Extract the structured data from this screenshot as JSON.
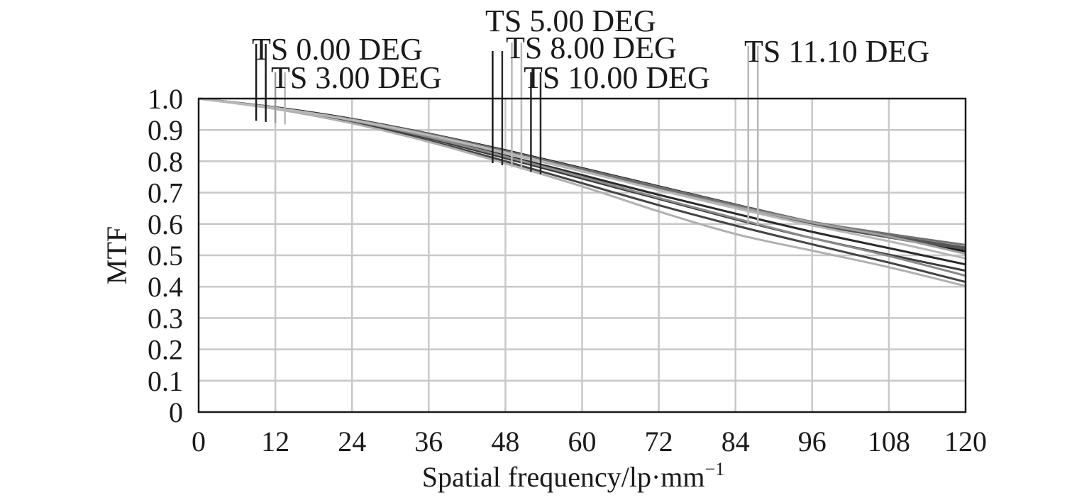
{
  "chart_data": {
    "type": "line",
    "title": "",
    "xlabel": "Spatial frequency/lp·mm",
    "xlabel_superscript": "−1",
    "ylabel": "MTF",
    "xlim": [
      0,
      120
    ],
    "ylim": [
      0,
      1
    ],
    "grid": true,
    "x_ticks": [
      0,
      12,
      24,
      36,
      48,
      60,
      72,
      84,
      96,
      108,
      120
    ],
    "x_tick_labels": [
      "0",
      "12",
      "24",
      "36",
      "48",
      "60",
      "72",
      "84",
      "96",
      "108",
      "120"
    ],
    "y_ticks": [
      0,
      0.1,
      0.2,
      0.3,
      0.4,
      0.5,
      0.6,
      0.7,
      0.8,
      0.9,
      1.0
    ],
    "y_tick_labels": [
      "0",
      "0.1",
      "0.2",
      "0.3",
      "0.4",
      "0.5",
      "0.6",
      "0.7",
      "0.8",
      "0.9",
      "1.0"
    ],
    "x": [
      0,
      12,
      24,
      36,
      48,
      60,
      72,
      84,
      96,
      108,
      120
    ],
    "series": [
      {
        "legend": "TS 0.00 DEG",
        "kind": "T",
        "color": "#1a1a1a",
        "values": [
          1.0,
          0.972,
          0.935,
          0.888,
          0.835,
          0.778,
          0.72,
          0.662,
          0.606,
          0.558,
          0.513
        ]
      },
      {
        "legend": "TS 0.00 DEG",
        "kind": "S",
        "color": "#1a1a1a",
        "values": [
          1.0,
          0.972,
          0.935,
          0.888,
          0.835,
          0.778,
          0.72,
          0.662,
          0.606,
          0.558,
          0.513
        ]
      },
      {
        "legend": "TS 3.00 DEG",
        "kind": "T",
        "color": "#555555",
        "values": [
          1.0,
          0.971,
          0.933,
          0.886,
          0.832,
          0.774,
          0.716,
          0.659,
          0.605,
          0.562,
          0.525
        ]
      },
      {
        "legend": "TS 3.00 DEG",
        "kind": "S",
        "color": "#555555",
        "values": [
          1.0,
          0.971,
          0.932,
          0.884,
          0.829,
          0.77,
          0.711,
          0.654,
          0.6,
          0.557,
          0.52
        ]
      },
      {
        "legend": "TS 5.00 DEG",
        "kind": "T",
        "color": "#2a2a2a",
        "values": [
          1.0,
          0.97,
          0.93,
          0.878,
          0.818,
          0.756,
          0.693,
          0.633,
          0.575,
          0.523,
          0.471
        ]
      },
      {
        "legend": "TS 5.00 DEG",
        "kind": "S",
        "color": "#707070",
        "values": [
          1.0,
          0.971,
          0.934,
          0.887,
          0.833,
          0.776,
          0.718,
          0.661,
          0.607,
          0.568,
          0.533
        ]
      },
      {
        "legend": "TS 8.00 DEG",
        "kind": "T",
        "color": "#3a3a3a",
        "values": [
          1.0,
          0.969,
          0.927,
          0.873,
          0.81,
          0.745,
          0.68,
          0.615,
          0.555,
          0.502,
          0.451
        ]
      },
      {
        "legend": "TS 8.00 DEG",
        "kind": "S",
        "color": "#8a8a8a",
        "values": [
          1.0,
          0.97,
          0.93,
          0.877,
          0.815,
          0.75,
          0.683,
          0.618,
          0.555,
          0.498,
          0.435
        ]
      },
      {
        "legend": "TS 10.00 DEG",
        "kind": "T",
        "color": "#444444",
        "values": [
          1.0,
          0.968,
          0.923,
          0.866,
          0.8,
          0.73,
          0.66,
          0.595,
          0.535,
          0.477,
          0.415
        ]
      },
      {
        "legend": "TS 10.00 DEG",
        "kind": "S",
        "color": "#a0a0a0",
        "values": [
          1.0,
          0.97,
          0.931,
          0.882,
          0.826,
          0.768,
          0.71,
          0.655,
          0.605,
          0.56,
          0.505
        ]
      },
      {
        "legend": "TS 11.10 DEG",
        "kind": "T",
        "color": "#b0b0b0",
        "values": [
          1.0,
          0.967,
          0.921,
          0.862,
          0.793,
          0.72,
          0.64,
          0.568,
          0.515,
          0.462,
          0.402
        ]
      },
      {
        "legend": "TS 11.10 DEG",
        "kind": "S",
        "color": "#b8b8b8",
        "values": [
          1.0,
          0.97,
          0.932,
          0.884,
          0.828,
          0.769,
          0.708,
          0.65,
          0.595,
          0.545,
          0.49
        ]
      }
    ],
    "legend_entries": [
      {
        "label": "TS 0.00 DEG",
        "marker_x": [
          9,
          10.5
        ],
        "colors": [
          "#1a1a1a",
          "#1a1a1a"
        ]
      },
      {
        "label": "TS 3.00 DEG",
        "marker_x": [
          12,
          13.5
        ],
        "colors": [
          "#9a9a9a",
          "#b8b8b8"
        ]
      },
      {
        "label": "TS 5.00 DEG",
        "marker_x": [
          46,
          47.5
        ],
        "colors": [
          "#1a1a1a",
          "#2a2a2a"
        ]
      },
      {
        "label": "TS 8.00 DEG",
        "marker_x": [
          49,
          50.5
        ],
        "colors": [
          "#b8b8b8",
          "#b8b8b8"
        ]
      },
      {
        "label": "TS 10.00 DEG",
        "marker_x": [
          52,
          53.5
        ],
        "colors": [
          "#2a2a2a",
          "#2a2a2a"
        ]
      },
      {
        "label": "TS 11.10 DEG",
        "marker_x": [
          86,
          87.5
        ],
        "colors": [
          "#b8b8b8",
          "#b8b8b8"
        ]
      }
    ]
  }
}
